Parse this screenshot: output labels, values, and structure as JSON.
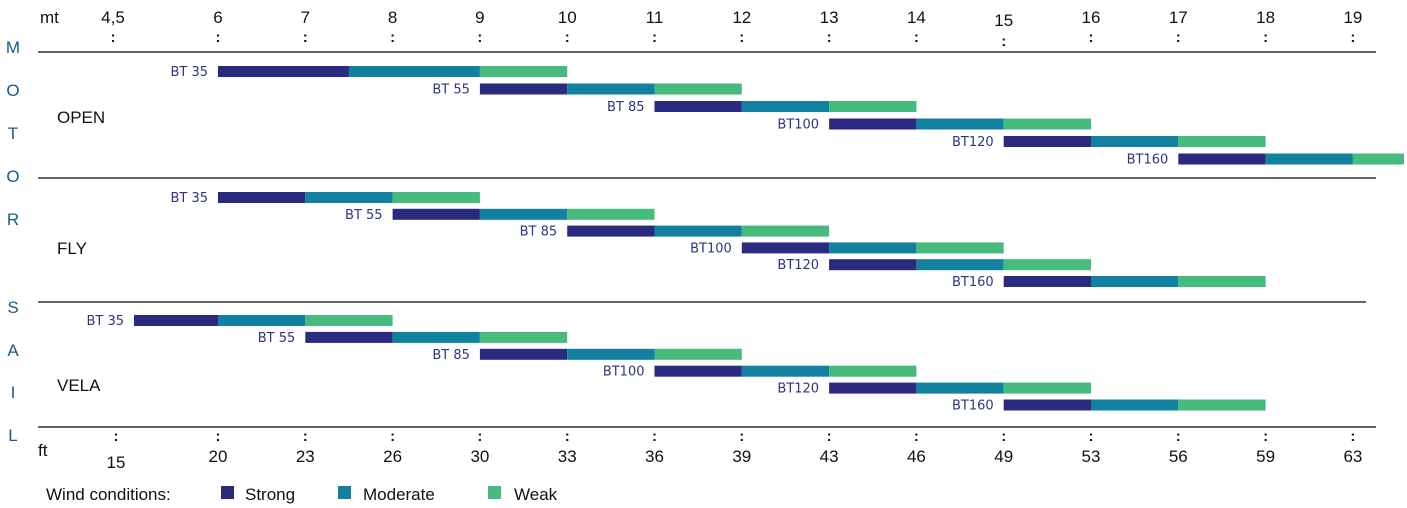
{
  "chart_data": {
    "type": "bar",
    "top_axis": {
      "unit": "mt",
      "ticks": [
        "4,5",
        "6",
        "7",
        "8",
        "9",
        "10",
        "11",
        "12",
        "13",
        "14",
        "15",
        "16",
        "17",
        "18",
        "19"
      ]
    },
    "bottom_axis": {
      "unit": "ft",
      "ticks": [
        "15",
        "20",
        "23",
        "26",
        "30",
        "33",
        "36",
        "39",
        "43",
        "46",
        "49",
        "53",
        "56",
        "59",
        "63"
      ]
    },
    "side_label": [
      "M",
      "O",
      "T",
      "O",
      "R",
      "S",
      "A",
      "I",
      "L"
    ],
    "condition_colors": {
      "strong": "#2b2a7e",
      "moderate": "#12819f",
      "weak": "#46bb7d"
    },
    "legend": {
      "title": "Wind conditions:",
      "items": [
        {
          "key": "strong",
          "label": "Strong"
        },
        {
          "key": "moderate",
          "label": "Moderate"
        },
        {
          "key": "weak",
          "label": "Weak"
        }
      ]
    },
    "groups": [
      {
        "name": "OPEN",
        "bars": [
          {
            "label": "BT 35",
            "strong": [
              6,
              7.5
            ],
            "moderate": [
              7.5,
              9
            ],
            "weak": [
              9,
              10
            ]
          },
          {
            "label": "BT 55",
            "strong": [
              9,
              10
            ],
            "moderate": [
              10,
              11
            ],
            "weak": [
              11,
              12
            ]
          },
          {
            "label": "BT 85",
            "strong": [
              11,
              12
            ],
            "moderate": [
              12,
              13
            ],
            "weak": [
              13,
              14
            ]
          },
          {
            "label": "BT100",
            "strong": [
              13,
              14
            ],
            "moderate": [
              14,
              15
            ],
            "weak": [
              15,
              16
            ]
          },
          {
            "label": "BT120",
            "strong": [
              15,
              16
            ],
            "moderate": [
              16,
              17
            ],
            "weak": [
              17,
              18
            ]
          },
          {
            "label": "BT160",
            "strong": [
              17,
              18
            ],
            "moderate": [
              18,
              19
            ],
            "weak": [
              19,
              19.6
            ]
          }
        ]
      },
      {
        "name": "FLY",
        "bars": [
          {
            "label": "BT 35",
            "strong": [
              6,
              7
            ],
            "moderate": [
              7,
              8
            ],
            "weak": [
              8,
              9
            ]
          },
          {
            "label": "BT 55",
            "strong": [
              8,
              9
            ],
            "moderate": [
              9,
              10
            ],
            "weak": [
              10,
              11
            ]
          },
          {
            "label": "BT 85",
            "strong": [
              10,
              11
            ],
            "moderate": [
              11,
              12
            ],
            "weak": [
              12,
              13
            ]
          },
          {
            "label": "BT100",
            "strong": [
              12,
              13
            ],
            "moderate": [
              13,
              14
            ],
            "weak": [
              14,
              15
            ]
          },
          {
            "label": "BT120",
            "strong": [
              13,
              14
            ],
            "moderate": [
              14,
              15
            ],
            "weak": [
              15,
              16
            ]
          },
          {
            "label": "BT160",
            "strong": [
              15,
              16
            ],
            "moderate": [
              16,
              17
            ],
            "weak": [
              17,
              18
            ]
          }
        ]
      },
      {
        "name": "VELA",
        "bars": [
          {
            "label": "BT 35",
            "strong": [
              4.8,
              6
            ],
            "moderate": [
              6,
              7
            ],
            "weak": [
              7,
              8
            ]
          },
          {
            "label": "BT 55",
            "strong": [
              7,
              8
            ],
            "moderate": [
              8,
              9
            ],
            "weak": [
              9,
              10
            ]
          },
          {
            "label": "BT 85",
            "strong": [
              9,
              10
            ],
            "moderate": [
              10,
              11
            ],
            "weak": [
              11,
              12
            ]
          },
          {
            "label": "BT100",
            "strong": [
              11,
              12
            ],
            "moderate": [
              12,
              13
            ],
            "weak": [
              13,
              14
            ]
          },
          {
            "label": "BT120",
            "strong": [
              13,
              14
            ],
            "moderate": [
              14,
              15
            ],
            "weak": [
              15,
              16
            ]
          },
          {
            "label": "BT160",
            "strong": [
              15,
              16
            ],
            "moderate": [
              16,
              17
            ],
            "weak": [
              17,
              18
            ]
          }
        ]
      }
    ]
  }
}
